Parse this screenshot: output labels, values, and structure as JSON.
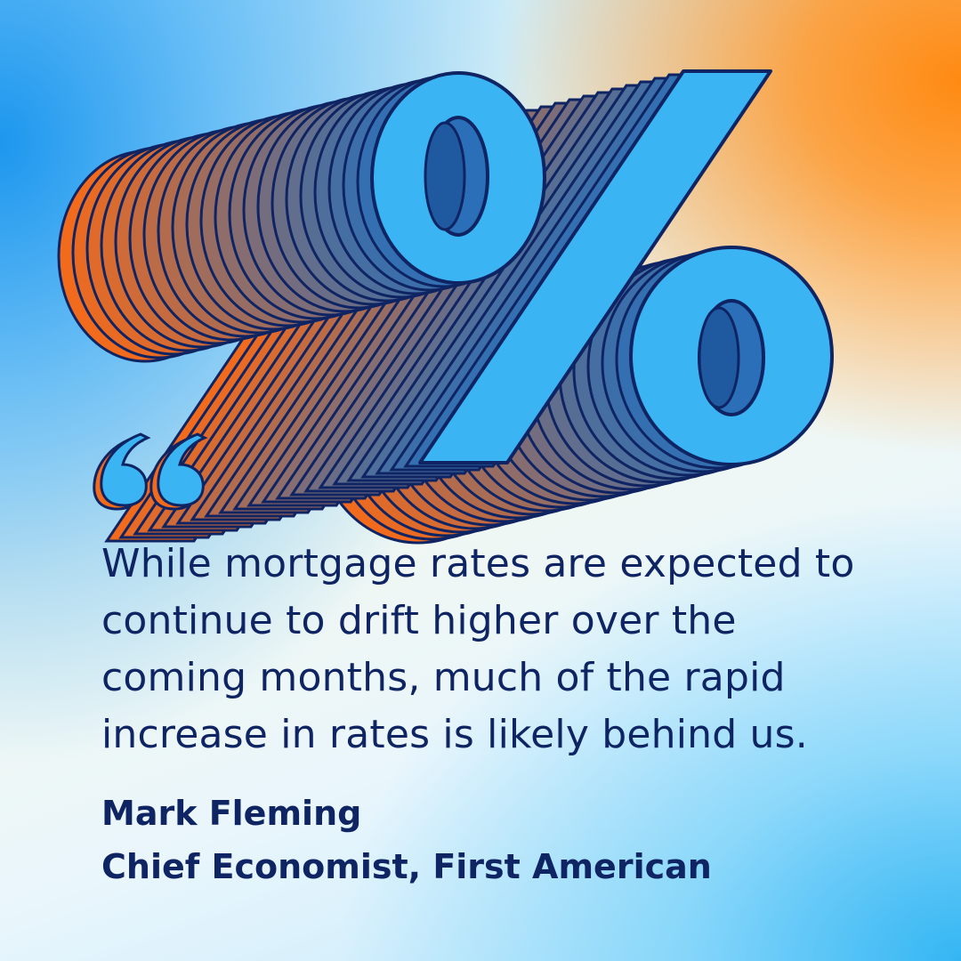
{
  "quote": {
    "text": "While mortgage rates are expected to continue to drift higher over the coming months, much of the rapid increase in rates is likely behind us."
  },
  "attribution": {
    "name": "Mark Fleming",
    "title": "Chief Economist, First American"
  },
  "colors": {
    "navy": "#0f2463",
    "symbol_face": "#3bb4f4",
    "trail_orange": "#f26a1b",
    "trail_blue": "#2a6fb8",
    "bg_orange": "#ff8a12",
    "bg_blue": "#1d97ee"
  },
  "icons": [
    "percent-icon",
    "quote-mark-icon"
  ]
}
